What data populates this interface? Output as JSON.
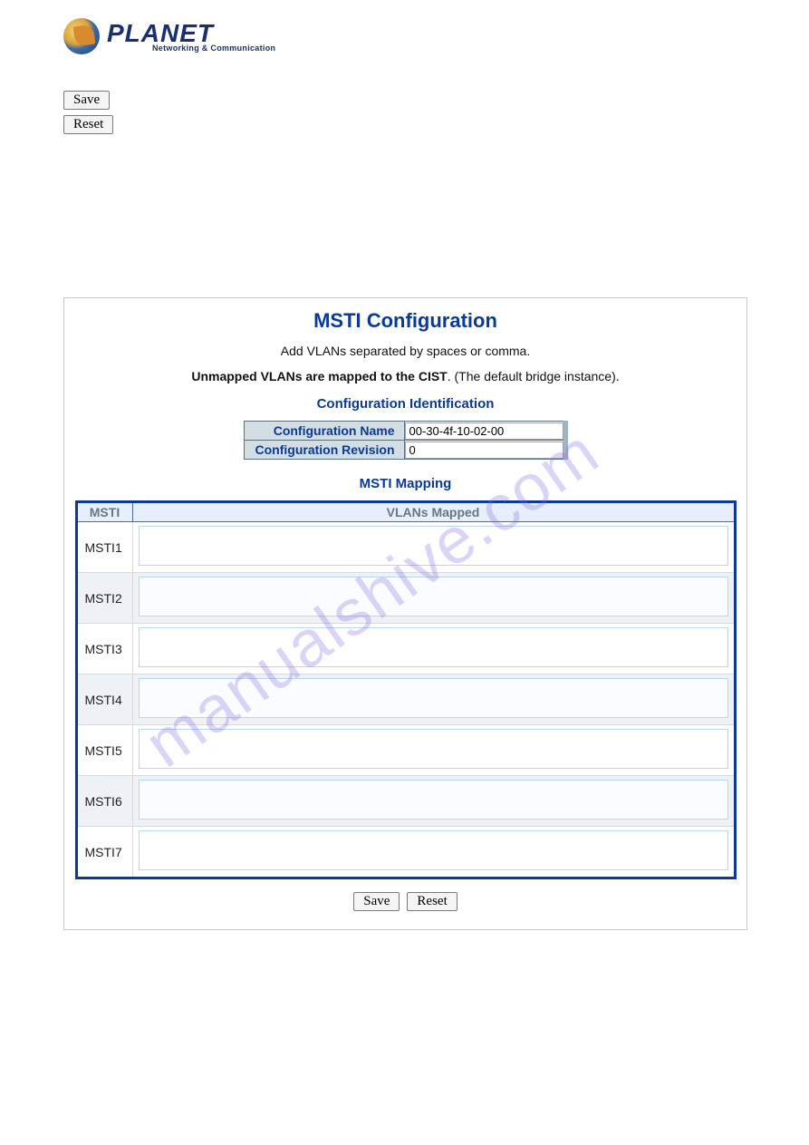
{
  "logo": {
    "brand": "PLANET",
    "tagline": "Networking & Communication"
  },
  "top_buttons": {
    "save": "Save",
    "reset": "Reset"
  },
  "panel": {
    "title": "MSTI Configuration",
    "instruction": "Add VLANs separated by spaces or comma.",
    "unmapped_bold": "Unmapped VLANs are mapped to the CIST",
    "unmapped_rest": ". (The default bridge instance).",
    "section_config_id": "Configuration Identification",
    "section_mapping": "MSTI Mapping",
    "config_name_label": "Configuration Name",
    "config_name_value": "00-30-4f-10-02-00",
    "config_rev_label": "Configuration Revision",
    "config_rev_value": "0",
    "col_msti": "MSTI",
    "col_vlans": "VLANs Mapped",
    "rows": [
      {
        "label": "MSTI1",
        "value": ""
      },
      {
        "label": "MSTI2",
        "value": ""
      },
      {
        "label": "MSTI3",
        "value": ""
      },
      {
        "label": "MSTI4",
        "value": ""
      },
      {
        "label": "MSTI5",
        "value": ""
      },
      {
        "label": "MSTI6",
        "value": ""
      },
      {
        "label": "MSTI7",
        "value": ""
      }
    ],
    "bottom_save": "Save",
    "bottom_reset": "Reset"
  },
  "watermark": "manualshive.com",
  "colors": {
    "title": "#0a3a93",
    "panel_border": "#c8c8c8",
    "table_border": "#0a3a93",
    "header_bg": "#e7f0fa",
    "header_text": "#6a7580",
    "cfg_label_bg": "#d2dde4",
    "even_row_bg": "#eef2f6"
  }
}
